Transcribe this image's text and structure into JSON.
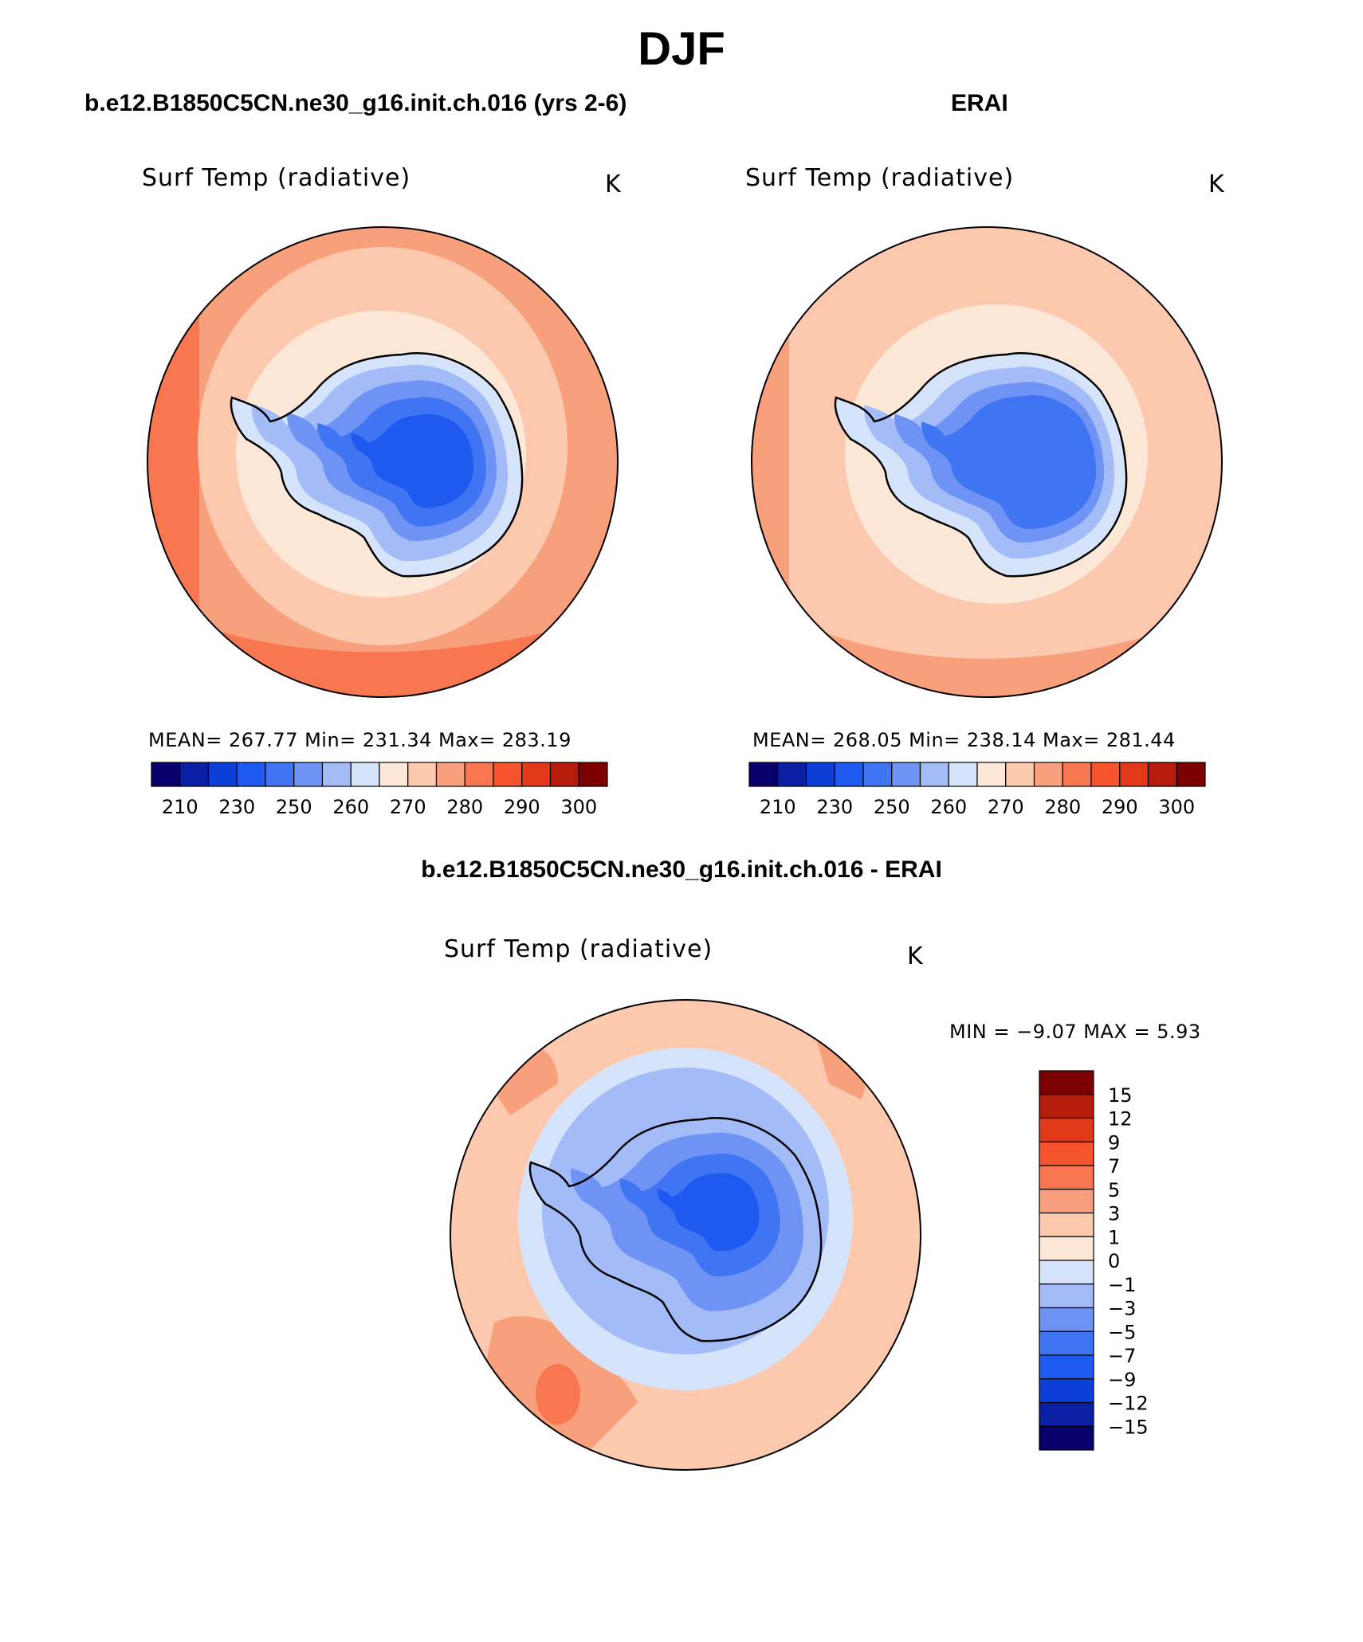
{
  "page": {
    "title": "DJF"
  },
  "panels": [
    {
      "id": "model",
      "heading": "b.e12.B1850C5CN.ne30_g16.init.ch.016 (yrs 2-6)",
      "variable": "Surf Temp (radiative)",
      "units": "K",
      "stats": {
        "mean": "267.77",
        "min": "231.34",
        "max": "283.19"
      },
      "stats_text": "MEAN= 267.77   Min= 231.34   Max= 283.19"
    },
    {
      "id": "obs",
      "heading": "ERAI",
      "variable": "Surf Temp (radiative)",
      "units": "K",
      "stats": {
        "mean": "268.05",
        "min": "238.14",
        "max": "281.44"
      },
      "stats_text": "MEAN= 268.05   Min= 238.14   Max= 281.44"
    },
    {
      "id": "diff",
      "heading": "b.e12.B1850C5CN.ne30_g16.init.ch.016 - ERAI",
      "variable": "Surf Temp (radiative)",
      "units": "K",
      "stats": {
        "min": "−9.07",
        "max": "5.93"
      },
      "stats_text": "MIN =   −9.07  MAX =     5.93"
    }
  ],
  "colorbars": {
    "absolute": {
      "colors": [
        "#08006b",
        "#0a1fa3",
        "#0c3fd6",
        "#1f5af0",
        "#3f74f2",
        "#6f93f4",
        "#a3bbf7",
        "#d6e4fb",
        "#fde8d8",
        "#fcc8ae",
        "#f8a07c",
        "#f87650",
        "#f7532d",
        "#e03a1a",
        "#b51c0c",
        "#7d0000"
      ],
      "tick_labels": [
        "210",
        "230",
        "250",
        "260",
        "270",
        "280",
        "290",
        "300"
      ]
    },
    "difference": {
      "colors": [
        "#7d0000",
        "#b51c0c",
        "#e03a1a",
        "#f7532d",
        "#f87650",
        "#f8a07c",
        "#fcc8ae",
        "#fde8d8",
        "#d6e4fb",
        "#a3bbf7",
        "#6f93f4",
        "#3f74f2",
        "#1f5af0",
        "#0c3fd6",
        "#0a1fa3",
        "#08006b"
      ],
      "tick_labels": [
        "15",
        "12",
        "9",
        "7",
        "5",
        "3",
        "1",
        "0",
        "−1",
        "−3",
        "−5",
        "−7",
        "−9",
        "−12",
        "−15"
      ]
    }
  }
}
